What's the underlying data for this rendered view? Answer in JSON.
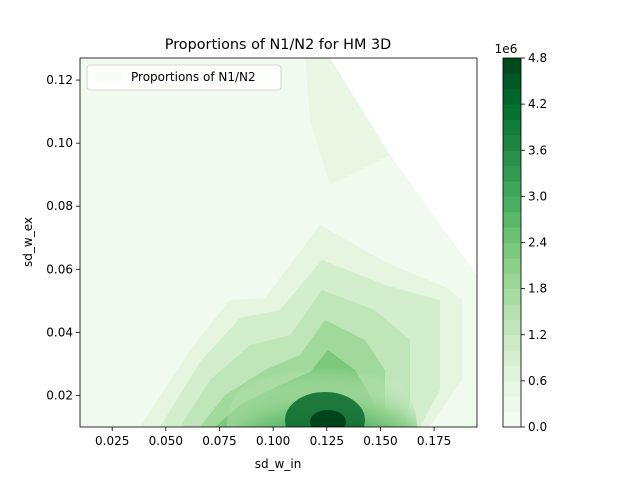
{
  "chart_data": {
    "type": "heatmap",
    "title": "Proportions of N1/N2 for HM 3D",
    "xlabel": "sd_w_in",
    "ylabel": "sd_w_ex",
    "xlim": [
      0.01,
      0.195
    ],
    "ylim": [
      0.01,
      0.127
    ],
    "x_ticks": [
      "0.025",
      "0.050",
      "0.075",
      "0.100",
      "0.125",
      "0.150",
      "0.175"
    ],
    "x_tick_values": [
      0.025,
      0.05,
      0.075,
      0.1,
      0.125,
      0.15,
      0.175
    ],
    "y_ticks": [
      "0.02",
      "0.04",
      "0.06",
      "0.08",
      "0.10",
      "0.12"
    ],
    "y_tick_values": [
      0.02,
      0.04,
      0.06,
      0.08,
      0.1,
      0.12
    ],
    "legend": {
      "label": "Proportions of N1/N2",
      "placement": "upper-left"
    },
    "colorbar": {
      "min": 0,
      "max": 4800000,
      "offset_label": "1e6",
      "tick_labels": [
        "0.0",
        "0.6",
        "1.2",
        "1.8",
        "2.4",
        "3.0",
        "3.6",
        "4.2",
        "4.8"
      ],
      "tick_values": [
        0,
        0.6,
        1.2,
        1.8,
        2.4,
        3.0,
        3.6,
        4.2,
        4.8
      ],
      "levels": 24,
      "colormap": "Greens"
    },
    "contour_peaks": [
      {
        "x": 0.128,
        "y": 0.01,
        "value": 4800000
      },
      {
        "x": 0.12,
        "y": 0.038,
        "value": 1400000
      }
    ],
    "blank_region": {
      "note": "white area at upper-right (no data)"
    }
  }
}
